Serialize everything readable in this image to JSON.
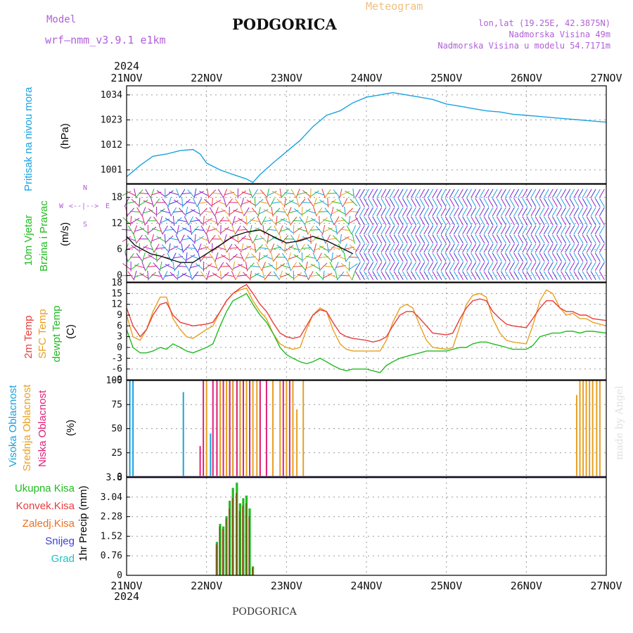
{
  "header": {
    "model_label": "Model",
    "model_name": "wrf–nmm_v3.9.1  e1km",
    "station": "PODGORICA",
    "product": "Meteogram",
    "lonlat": "lon,lat (19.25E, 42.3875N)",
    "elevation": "Nadmorska Visina 49m",
    "model_elevation": "Nadmorska Visina u modelu 54.7171m"
  },
  "footer": {
    "station": "PODGORICA",
    "credit": "made by Angel"
  },
  "time_axis": {
    "year": "2024",
    "labels": [
      "21NOV",
      "22NOV",
      "23NOV",
      "24NOV",
      "25NOV",
      "26NOV",
      "27NOV"
    ],
    "day_start": [
      21,
      22,
      23,
      24,
      25,
      26,
      27
    ]
  },
  "panels": {
    "pressure": {
      "labels": [
        {
          "text": "Pritisak na nivou mora",
          "color": "#1aa2e0"
        },
        {
          "text": "(hPa)",
          "color": "#000000"
        }
      ]
    },
    "wind": {
      "labels": [
        {
          "text": "10m Vjetar",
          "color": "#22bb22"
        },
        {
          "text": "Brzina i Pravac",
          "color": "#22bb22"
        },
        {
          "text": "(m/s)",
          "color": "#000000"
        }
      ],
      "compass": {
        "west": "W",
        "east": "E",
        "north": "N",
        "south": "S"
      }
    },
    "temperature": {
      "labels": [
        {
          "text": "2m Temp",
          "color": "#e83c3c"
        },
        {
          "text": "SFC Temp",
          "color": "#e8a020"
        },
        {
          "text": "dewpt Temp",
          "color": "#22bb22"
        },
        {
          "text": "(C)",
          "color": "#000000"
        }
      ]
    },
    "cloud": {
      "labels": [
        {
          "text": "Visoka Oblacnost",
          "color": "#1aa2e0"
        },
        {
          "text": "Srednja Oblacnost",
          "color": "#e8a020"
        },
        {
          "text": "Niska Oblacnost",
          "color": "#e0207a"
        },
        {
          "text": "(%)",
          "color": "#000000"
        }
      ]
    },
    "precip": {
      "legend": [
        {
          "text": "Ukupna Kisa",
          "color": "#22bb22"
        },
        {
          "text": "Konvek.Kisa",
          "color": "#e83c3c"
        },
        {
          "text": "Zaledj.Kisa",
          "color": "#e87020"
        },
        {
          "text": "Snijeg",
          "color": "#3c3ce0"
        },
        {
          "text": "Grad",
          "color": "#20c0c0"
        }
      ],
      "axis_label": "1hr Precip (mm)"
    }
  },
  "colors": {
    "pressure_line": "#1aa2e0",
    "temp_2m": "#e83c3c",
    "temp_sfc": "#e8a020",
    "dewpoint": "#22bb22",
    "cloud_high": "#1aa2e0",
    "cloud_mid": "#e8a020",
    "cloud_low": "#e0207a",
    "precip_total": "#22bb22",
    "precip_conv": "#8b4513",
    "model_text": "#b060d8",
    "meteogram_title": "#f0c080"
  },
  "chart_data": [
    {
      "type": "line",
      "panel": "pressure",
      "ylabel": "Pritisak na nivou mora (hPa)",
      "ylim": [
        995,
        1038
      ],
      "yticks": [
        1001,
        1012,
        1023,
        1034
      ],
      "grid": true,
      "x_unit": "day of November 2024",
      "x": [
        21.0,
        21.17,
        21.33,
        21.5,
        21.67,
        21.83,
        21.92,
        22.0,
        22.17,
        22.33,
        22.5,
        22.58,
        22.67,
        22.83,
        23.0,
        23.17,
        23.33,
        23.5,
        23.67,
        23.83,
        24.0,
        24.17,
        24.33,
        24.5,
        24.67,
        24.83,
        25.0,
        25.17,
        25.33,
        25.5,
        25.67,
        25.83,
        26.0,
        26.17,
        26.33,
        26.5,
        26.67,
        26.83,
        27.0
      ],
      "series": [
        {
          "values": [
            998,
            1003,
            1007,
            1008,
            1009.5,
            1010,
            1008,
            1004,
            1001,
            999,
            997,
            995.5,
            999,
            1004,
            1009,
            1014,
            1020,
            1025,
            1027,
            1030.5,
            1033,
            1034,
            1035,
            1034,
            1033,
            1032,
            1030,
            1029,
            1028,
            1027,
            1026.5,
            1025.5,
            1025,
            1024.5,
            1024,
            1023.5,
            1023,
            1022.5,
            1022
          ]
        }
      ]
    },
    {
      "type": "scatter",
      "panel": "wind",
      "ylabel": "10m Vjetar Brzina i Pravac (m/s)",
      "ylim": [
        -1.5,
        21
      ],
      "yticks": [
        0,
        6,
        12,
        18
      ],
      "grid": true,
      "x_unit": "day of November 2024",
      "x": [
        21.0,
        21.1,
        21.2,
        21.3,
        21.42,
        21.5,
        21.67,
        21.83,
        22.0,
        22.17,
        22.33,
        22.5,
        22.67,
        22.83,
        23.0,
        23.17,
        23.33,
        23.5,
        23.67,
        23.83
      ],
      "series": [
        {
          "values": [
            9,
            7,
            6,
            5,
            4.5,
            4,
            3,
            3,
            5,
            7,
            9,
            10,
            10.5,
            9,
            7.5,
            8,
            9,
            8,
            6.5,
            5
          ]
        }
      ]
    },
    {
      "type": "line",
      "panel": "temperature",
      "ylabel": "(C)",
      "ylim": [
        -9,
        18
      ],
      "yticks": [
        -9,
        -6,
        -3,
        0,
        3,
        6,
        9,
        12,
        15,
        18
      ],
      "grid": true,
      "x_unit": "day of November 2024",
      "x": [
        21.0,
        21.08,
        21.17,
        21.25,
        21.33,
        21.42,
        21.5,
        21.58,
        21.67,
        21.75,
        21.83,
        22.0,
        22.08,
        22.17,
        22.25,
        22.33,
        22.42,
        22.5,
        22.58,
        22.67,
        22.75,
        22.83,
        22.92,
        23.0,
        23.08,
        23.17,
        23.25,
        23.33,
        23.42,
        23.5,
        23.58,
        23.67,
        23.75,
        23.83,
        24.0,
        24.08,
        24.17,
        24.25,
        24.33,
        24.42,
        24.5,
        24.58,
        24.67,
        24.75,
        24.83,
        25.0,
        25.08,
        25.17,
        25.25,
        25.33,
        25.42,
        25.5,
        25.58,
        25.67,
        25.75,
        25.83,
        26.0,
        26.08,
        26.17,
        26.25,
        26.33,
        26.42,
        26.5,
        26.58,
        26.67,
        26.75,
        26.83,
        27.0
      ],
      "series": [
        {
          "name": "2m Temp",
          "values": [
            11,
            6,
            3,
            5,
            9,
            12,
            12.5,
            9,
            7,
            6.5,
            6,
            6.5,
            7,
            10,
            13,
            15,
            16.5,
            17.5,
            15,
            12,
            10,
            7,
            4,
            3,
            2.5,
            3,
            6,
            9,
            10.5,
            10,
            7,
            4,
            3,
            2.5,
            2,
            1.5,
            2,
            3,
            6,
            9,
            10,
            10,
            8,
            6,
            4,
            3.5,
            4,
            8,
            11,
            13,
            13.5,
            13,
            10,
            8,
            6.5,
            6,
            5.5,
            8,
            11,
            13,
            13,
            11,
            10,
            10,
            9,
            9,
            8,
            7.5
          ]
        },
        {
          "name": "SFC Temp",
          "values": [
            9,
            3,
            2,
            5,
            10,
            14,
            14,
            8,
            5,
            3,
            2.5,
            5,
            6,
            10,
            13,
            15,
            16,
            16.5,
            13,
            10,
            8,
            4,
            1,
            0,
            -0.5,
            0,
            5,
            9,
            11,
            10,
            5,
            1,
            -0.5,
            -1,
            -1,
            -1,
            -1,
            2,
            7,
            11,
            12,
            11,
            6,
            2,
            0,
            -0.5,
            0,
            6,
            12,
            14.5,
            15,
            14,
            8,
            4,
            2,
            1.5,
            1,
            6,
            13,
            16,
            15,
            11,
            9,
            9.5,
            8,
            8,
            7,
            6
          ]
        },
        {
          "name": "dewpt Temp",
          "values": [
            5,
            0,
            -1.5,
            -1.5,
            -1,
            0,
            -0.5,
            1,
            0,
            -1,
            -1.5,
            0,
            1,
            6,
            10,
            13,
            14,
            15,
            12,
            9,
            7,
            4,
            0,
            -2,
            -3,
            -4,
            -4.5,
            -4,
            -3,
            -4,
            -5,
            -6,
            -6.5,
            -6,
            -6,
            -6.5,
            -7,
            -5,
            -4,
            -3,
            -2.5,
            -2,
            -1.5,
            -1,
            -1,
            -1,
            -0.5,
            0,
            0,
            1,
            1.5,
            1.5,
            1,
            0.5,
            0,
            -0.5,
            -0.5,
            0.5,
            3,
            3.5,
            4,
            4,
            4.5,
            4.5,
            4,
            4.5,
            4.5,
            4
          ]
        }
      ]
    },
    {
      "type": "bar",
      "panel": "cloud",
      "ylabel": "(%)",
      "ylim": [
        0,
        100
      ],
      "yticks": [
        0,
        25,
        50,
        75,
        100
      ],
      "grid": true,
      "x_unit": "day of November 2024",
      "series": [
        {
          "name": "Visoka Oblacnost",
          "x": [
            21.04,
            21.08,
            21.71,
            22.05,
            22.33,
            22.42,
            22.5,
            22.54
          ],
          "values": [
            100,
            100,
            88,
            45,
            100,
            100,
            100,
            100
          ]
        },
        {
          "name": "Srednja Oblacnost",
          "x": [
            22.0,
            22.13,
            22.17,
            22.25,
            22.29,
            22.33,
            22.38,
            22.42,
            22.46,
            22.5,
            22.54,
            22.58,
            22.63,
            22.67,
            22.75,
            22.83,
            22.92,
            23.0,
            23.08,
            23.13,
            23.21,
            26.63,
            26.67,
            26.71,
            26.75,
            26.79,
            26.83,
            26.88,
            26.92
          ],
          "values": [
            100,
            95,
            100,
            100,
            100,
            100,
            100,
            100,
            100,
            100,
            100,
            100,
            100,
            90,
            20,
            100,
            100,
            100,
            100,
            70,
            100,
            85,
            100,
            100,
            100,
            100,
            100,
            100,
            100
          ]
        },
        {
          "name": "Niska Oblacnost",
          "x": [
            21.92,
            21.96,
            22.08,
            22.13,
            22.21,
            22.29,
            22.38,
            22.46,
            22.54,
            22.67,
            22.75,
            22.96,
            23.04
          ],
          "values": [
            32,
            100,
            100,
            100,
            100,
            100,
            100,
            100,
            100,
            100,
            100,
            100,
            100
          ]
        }
      ]
    },
    {
      "type": "bar",
      "panel": "precip",
      "ylabel": "1hr Precip (mm)",
      "ylim": [
        0,
        3.8
      ],
      "yticks": [
        0,
        0.76,
        1.52,
        2.28,
        3.04,
        3.8
      ],
      "grid": true,
      "x_unit": "day of November 2024",
      "x": [
        22.13,
        22.17,
        22.21,
        22.25,
        22.29,
        22.33,
        22.38,
        22.42,
        22.46,
        22.5,
        22.54,
        22.58,
        22.63
      ],
      "series": [
        {
          "name": "Ukupna Kisa",
          "values": [
            1.3,
            2.0,
            1.9,
            2.3,
            2.9,
            3.4,
            3.6,
            2.8,
            3.0,
            3.1,
            2.6,
            0.35,
            0.0
          ]
        },
        {
          "name": "Konvek.Kisa",
          "values": [
            1.2,
            1.9,
            1.8,
            2.2,
            2.6,
            3.0,
            3.2,
            2.5,
            2.7,
            2.8,
            2.3,
            0.3,
            0.0
          ]
        }
      ]
    }
  ]
}
